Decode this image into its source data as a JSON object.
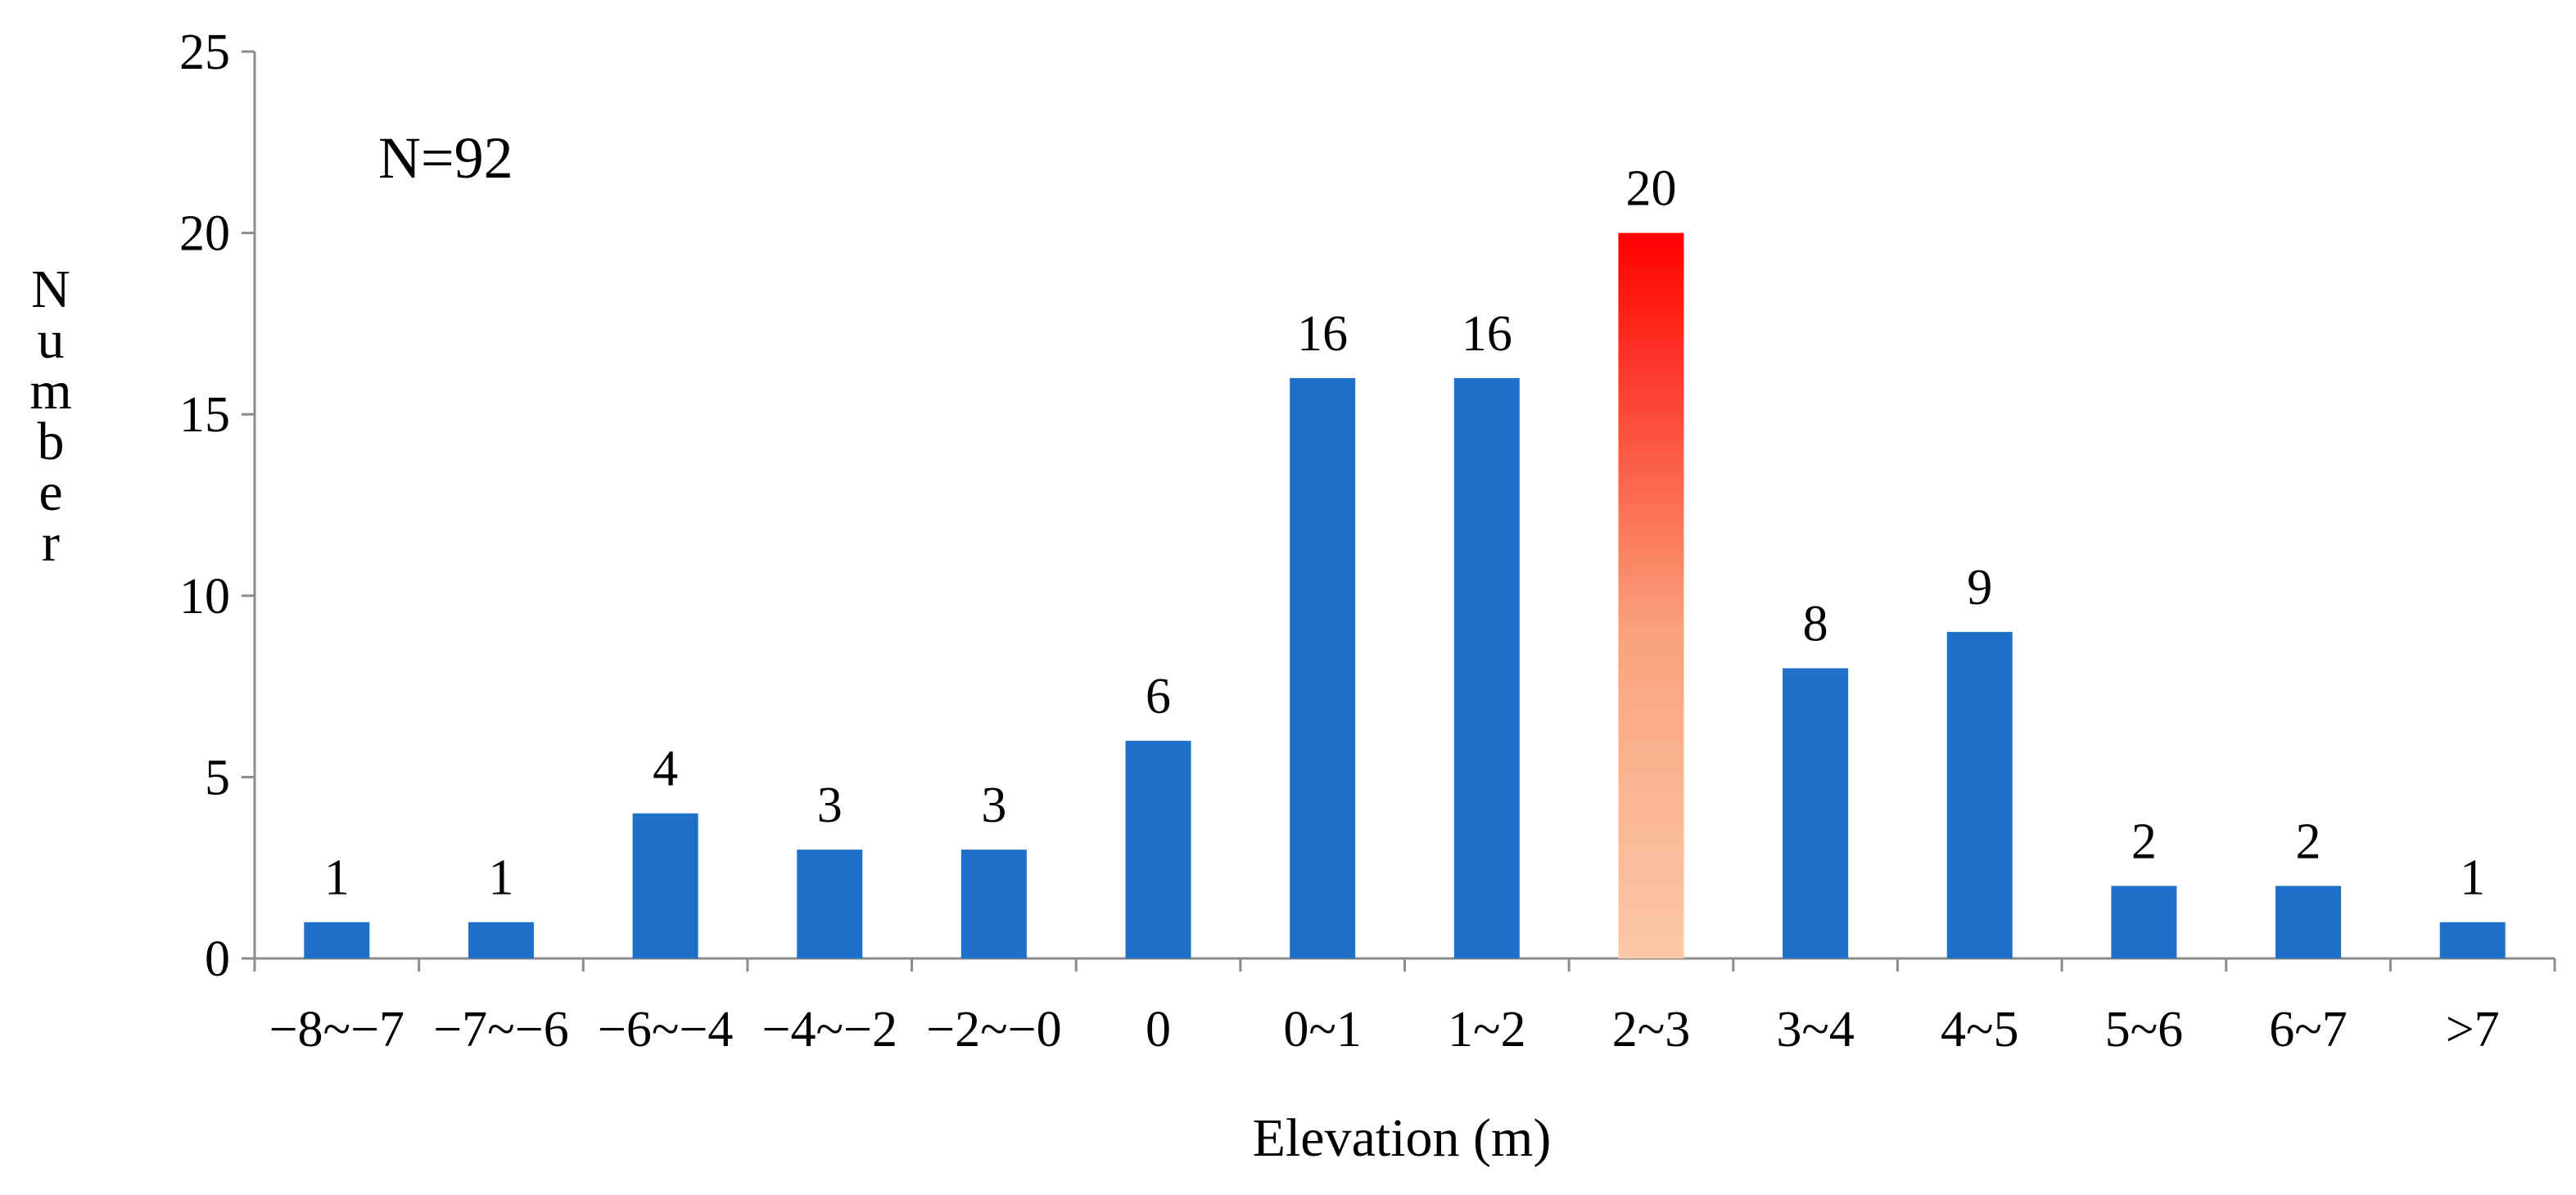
{
  "chart_data": {
    "type": "bar",
    "categories": [
      "−8~−7",
      "−7~−6",
      "−6~−4",
      "−4~−2",
      "−2~−0",
      "0",
      "0~1",
      "1~2",
      "2~3",
      "3~4",
      "4~5",
      "5~6",
      "6~7",
      ">7"
    ],
    "values": [
      1,
      1,
      4,
      3,
      3,
      6,
      16,
      16,
      20,
      8,
      9,
      2,
      2,
      1
    ],
    "data_labels": [
      "1",
      "1",
      "4",
      "3",
      "3",
      "6",
      "16",
      "16",
      "20",
      "8",
      "9",
      "2",
      "2",
      "1"
    ],
    "highlight_index": 8,
    "xlabel": "Elevation (m)",
    "ylabel": "Number",
    "ylim": [
      0,
      25
    ],
    "yticks": [
      0,
      5,
      10,
      15,
      20,
      25
    ],
    "ytick_labels": [
      "0",
      "5",
      "10",
      "15",
      "20",
      "25"
    ],
    "annotation": "N=92",
    "grid": false,
    "legend": "none",
    "colors": {
      "bar": "#1f70c9",
      "highlight_top": "#ff0000",
      "highlight_bottom": "#fbc8a8",
      "axis": "#8c8c8c"
    }
  }
}
